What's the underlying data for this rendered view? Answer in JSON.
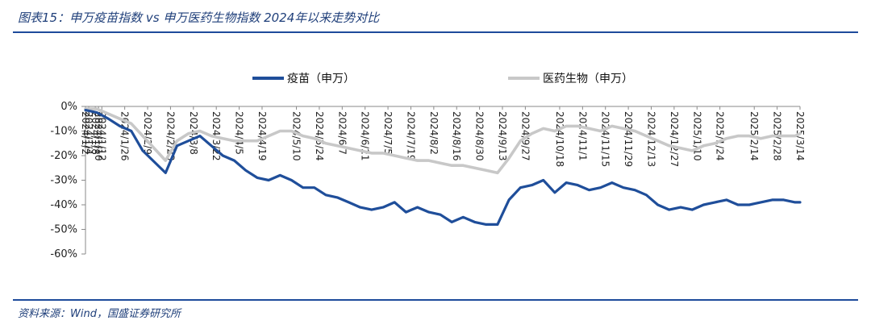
{
  "title": "图表15：申万疫苗指数 vs 申万医药生物指数 2024年以来走势对比",
  "source": "资料来源：Wind，国盛证券研究所",
  "colors": {
    "accent": "#1e4b9b",
    "series_1": "#1f4e9a",
    "series_2": "#c8c8c8"
  },
  "chart_data": {
    "type": "line",
    "ylabel": "",
    "xlabel": "",
    "ylim": [
      -60,
      0
    ],
    "yticks": [
      0,
      -10,
      -20,
      -30,
      -40,
      -50,
      -60
    ],
    "ytick_labels": [
      "0%",
      "-10%",
      "-20%",
      "-30%",
      "-40%",
      "-50%",
      "-60%"
    ],
    "legend_position": "top-center",
    "grid": false,
    "xtick_labels": [
      "2024/1/2",
      "2024/1/4",
      "2024/1/8",
      "2024/1/10",
      "2024/1/12",
      "2024/1/26",
      "2024/2/9",
      "2024/2/23",
      "2024/3/8",
      "2024/3/22",
      "2024/4/5",
      "2024/4/19",
      "2024/5/10",
      "2024/5/24",
      "2024/6/7",
      "2024/6/21",
      "2024/7/5",
      "2024/7/19",
      "2024/8/2",
      "2024/8/16",
      "2024/8/30",
      "2024/9/13",
      "2024/9/27",
      "2024/10/18",
      "2024/11/1",
      "2024/11/15",
      "2024/11/29",
      "2024/12/13",
      "2024/12/27",
      "2025/1/10",
      "2025/1/24",
      "2025/2/14",
      "2025/2/28",
      "2025/3/14"
    ],
    "x": [
      "2024/1/2",
      "2024/1/9",
      "2024/1/16",
      "2024/1/23",
      "2024/1/30",
      "2024/2/6",
      "2024/2/20",
      "2024/2/27",
      "2024/3/5",
      "2024/3/12",
      "2024/3/19",
      "2024/3/26",
      "2024/4/2",
      "2024/4/9",
      "2024/4/16",
      "2024/4/23",
      "2024/4/30",
      "2024/5/7",
      "2024/5/14",
      "2024/5/21",
      "2024/5/28",
      "2024/6/4",
      "2024/6/11",
      "2024/6/18",
      "2024/6/25",
      "2024/7/2",
      "2024/7/9",
      "2024/7/16",
      "2024/7/23",
      "2024/7/30",
      "2024/8/6",
      "2024/8/13",
      "2024/8/20",
      "2024/8/27",
      "2024/9/3",
      "2024/9/10",
      "2024/9/17",
      "2024/9/24",
      "2024/10/1",
      "2024/10/8",
      "2024/10/15",
      "2024/10/22",
      "2024/10/29",
      "2024/11/5",
      "2024/11/12",
      "2024/11/19",
      "2024/11/26",
      "2024/12/3",
      "2024/12/10",
      "2024/12/17",
      "2024/12/24",
      "2024/12/31",
      "2025/1/7",
      "2025/1/14",
      "2025/1/21",
      "2025/1/28",
      "2025/2/4",
      "2025/2/11",
      "2025/2/18",
      "2025/2/25",
      "2025/3/4",
      "2025/3/11",
      "2025/3/14"
    ],
    "series": [
      {
        "name": "疫苗（申万）",
        "values": [
          -1.5,
          -2.5,
          -5,
          -8,
          -10,
          -18,
          -27,
          -16,
          -14,
          -12,
          -16,
          -20,
          -22,
          -26,
          -29,
          -30,
          -28,
          -30,
          -33,
          -33,
          -36,
          -37,
          -39,
          -41,
          -42,
          -41,
          -39,
          -43,
          -41,
          -43,
          -44,
          -47,
          -45,
          -47,
          -48,
          -48,
          -38,
          -33,
          -32,
          -30,
          -35,
          -31,
          -32,
          -34,
          -33,
          -31,
          -33,
          -34,
          -36,
          -40,
          -42,
          -41,
          -42,
          -40,
          -39,
          -38,
          -40,
          -40,
          -39,
          -38,
          -38,
          -39,
          -39
        ]
      },
      {
        "name": "医药生物（申万）",
        "values": [
          -1,
          -1,
          -3,
          -5,
          -7,
          -12,
          -22,
          -14,
          -11,
          -10,
          -12,
          -13,
          -14,
          -14,
          -14,
          -12,
          -10,
          -10,
          -12,
          -13,
          -15,
          -16,
          -17,
          -18,
          -19,
          -19,
          -20,
          -21,
          -22,
          -22,
          -23,
          -24,
          -24,
          -25,
          -26,
          -27,
          -21,
          -14,
          -11,
          -9,
          -10,
          -8,
          -8,
          -9,
          -10,
          -8,
          -9,
          -10,
          -12,
          -14,
          -16,
          -17,
          -18,
          -16,
          -15,
          -13,
          -12,
          -12,
          -13,
          -12,
          -12,
          -12,
          -11
        ]
      }
    ]
  }
}
